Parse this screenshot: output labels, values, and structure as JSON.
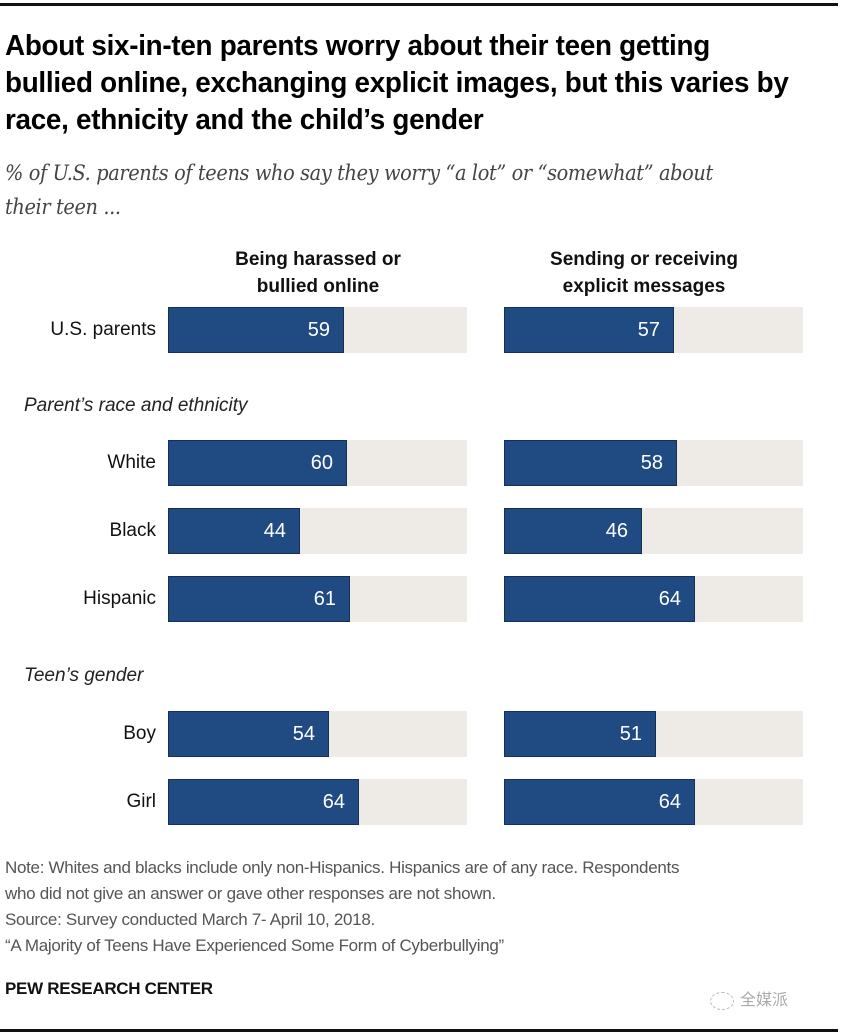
{
  "title": "About six-in-ten parents worry about their teen getting bullied online, exchanging explicit images, but this varies by race, ethnicity and the child’s gender",
  "subtitle": "% of U.S. parents of teens who say they worry “a lot” or “somewhat” about their teen ...",
  "colors": {
    "bar": "#1f4a82",
    "track": "#eeebe6",
    "bar_text": "#ffffff"
  },
  "chart_data": {
    "type": "bar",
    "orientation": "horizontal",
    "title": "About six-in-ten parents worry about their teen getting bullied online, exchanging explicit images, but this varies by race, ethnicity and the child’s gender",
    "subtitle": "% of U.S. parents of teens who say they worry “a lot” or “somewhat” about their teen ...",
    "xlim": [
      0,
      100
    ],
    "grid": false,
    "legend": "none",
    "series": [
      {
        "name": "Being harassed or bullied online",
        "name_lines": [
          "Being harassed or",
          "bullied online"
        ]
      },
      {
        "name": "Sending or receiving explicit messages",
        "name_lines": [
          "Sending or receiving",
          "explicit messages"
        ]
      }
    ],
    "groups": [
      {
        "label": "",
        "rows": [
          {
            "label": "U.S. parents",
            "values": [
              59,
              57
            ]
          }
        ]
      },
      {
        "label": "Parent’s race and ethnicity",
        "rows": [
          {
            "label": "White",
            "values": [
              60,
              58
            ]
          },
          {
            "label": "Black",
            "values": [
              44,
              46
            ]
          },
          {
            "label": "Hispanic",
            "values": [
              61,
              64
            ]
          }
        ]
      },
      {
        "label": "Teen’s gender",
        "rows": [
          {
            "label": "Boy",
            "values": [
              54,
              51
            ]
          },
          {
            "label": "Girl",
            "values": [
              64,
              64
            ]
          }
        ]
      }
    ]
  },
  "notes": [
    "Note: Whites and blacks include only non-Hispanics. Hispanics are of any race. Respondents",
    "who did not give an answer or gave other responses are not shown.",
    "Source: Survey conducted March 7- April 10, 2018.",
    "“A Majority of Teens Have Experienced Some Form of Cyberbullying”"
  ],
  "brand": "PEW RESEARCH CENTER",
  "watermark": "全媒派"
}
